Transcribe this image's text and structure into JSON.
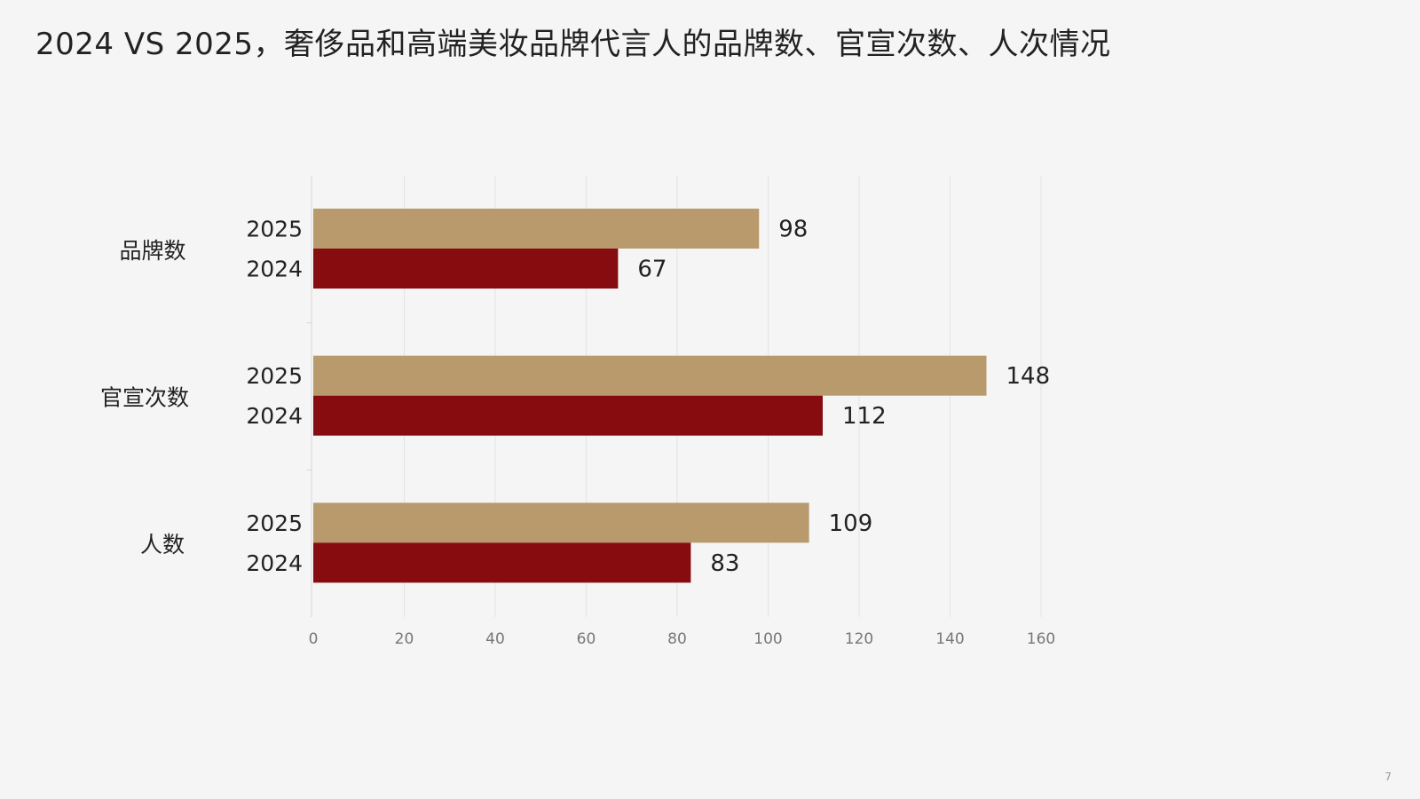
{
  "page": {
    "page_number": "7"
  },
  "chart_data": {
    "type": "bar",
    "orientation": "horizontal",
    "title": "2024 VS 2025，奢侈品和高端美妆品牌代言人的品牌数、官宣次数、人次情况",
    "categories": [
      "品牌数",
      "官宣次数",
      "人数"
    ],
    "series": [
      {
        "name": "2025",
        "color": "#b89a6c",
        "values": [
          98,
          148,
          109
        ]
      },
      {
        "name": "2024",
        "color": "#860c0f",
        "values": [
          67,
          112,
          83
        ]
      }
    ],
    "x_ticks": [
      "0",
      "20",
      "40",
      "60",
      "80",
      "100",
      "120",
      "140",
      "160"
    ],
    "xlim": [
      0,
      160
    ],
    "grid": true,
    "legend": "none",
    "xlabel": "",
    "ylabel": ""
  }
}
